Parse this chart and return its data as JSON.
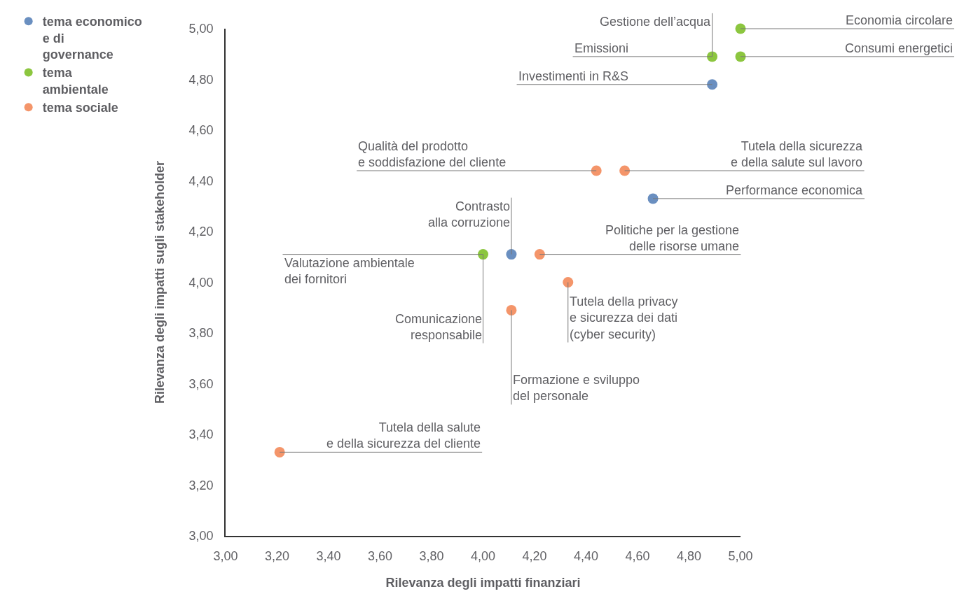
{
  "chart_data": {
    "type": "scatter",
    "xlabel": "Rilevanza degli impatti finanziari",
    "ylabel": "Rilevanza degli impatti sugli stakeholder",
    "xlim": [
      3,
      5
    ],
    "ylim": [
      3,
      5
    ],
    "xticks": [
      {
        "value": 3,
        "label": "3,00"
      },
      {
        "value": 3.2,
        "label": "3,20"
      },
      {
        "value": 3.4,
        "label": "3,40"
      },
      {
        "value": 3.6,
        "label": "3,60"
      },
      {
        "value": 3.8,
        "label": "3,80"
      },
      {
        "value": 4,
        "label": "4,00"
      },
      {
        "value": 4.2,
        "label": "4,20"
      },
      {
        "value": 4.4,
        "label": "4,40"
      },
      {
        "value": 4.6,
        "label": "4,60"
      },
      {
        "value": 4.8,
        "label": "4,80"
      },
      {
        "value": 5,
        "label": "5,00"
      }
    ],
    "yticks": [
      {
        "value": 3,
        "label": "3,00"
      },
      {
        "value": 3.2,
        "label": "3,20"
      },
      {
        "value": 3.4,
        "label": "3,40"
      },
      {
        "value": 3.6,
        "label": "3,60"
      },
      {
        "value": 3.8,
        "label": "3,80"
      },
      {
        "value": 4,
        "label": "4,00"
      },
      {
        "value": 4.2,
        "label": "4,20"
      },
      {
        "value": 4.4,
        "label": "4,40"
      },
      {
        "value": 4.6,
        "label": "4,60"
      },
      {
        "value": 4.8,
        "label": "4,80"
      },
      {
        "value": 5,
        "label": "5,00"
      }
    ],
    "legend": "top left",
    "marker": "circle",
    "series": [
      {
        "name": "tema economico\ne di\ngovernance",
        "color": "#6a8fc0",
        "x": [
          4.89,
          4.66,
          4.11
        ],
        "values": [
          4.78,
          4.33,
          4.11
        ]
      },
      {
        "name": "tema\nambientale",
        "color": "#8cc63f",
        "x": [
          5.0,
          4.89,
          5.0,
          4.0
        ],
        "values": [
          5.0,
          4.89,
          4.89,
          4.11
        ]
      },
      {
        "name": "tema sociale",
        "color": "#f4956a",
        "x": [
          4.44,
          4.55,
          4.22,
          4.33,
          4.11,
          3.21
        ],
        "values": [
          4.44,
          4.44,
          4.11,
          4.0,
          3.89,
          3.33
        ]
      }
    ],
    "annotations": [
      {
        "text": "Economia circolare",
        "x": 5.0,
        "y": 5.0
      },
      {
        "text": "Gestione dell’acqua",
        "x": 4.89,
        "y": 4.89
      },
      {
        "text": "Emissioni",
        "x": 4.89,
        "y": 4.89
      },
      {
        "text": "Consumi energetici",
        "x": 5.0,
        "y": 4.89
      },
      {
        "text": "Investimenti in R&S",
        "x": 4.89,
        "y": 4.78
      },
      {
        "text": "Qualità del prodotto\ne soddisfazione del cliente",
        "x": 4.44,
        "y": 4.44
      },
      {
        "text": "Tutela della sicurezza\ne della salute sul lavoro",
        "x": 4.55,
        "y": 4.44
      },
      {
        "text": "Performance economica",
        "x": 4.66,
        "y": 4.33
      },
      {
        "text": "Contrasto\nalla corruzione",
        "x": 4.11,
        "y": 4.11
      },
      {
        "text": "Valutazione ambientale\ndei fornitori",
        "x": 4.0,
        "y": 4.11
      },
      {
        "text": "Comunicazione\nresponsabile",
        "x": 4.0,
        "y": 4.11
      },
      {
        "text": "Politiche per la gestione\ndelle risorse umane",
        "x": 4.22,
        "y": 4.11
      },
      {
        "text": "Tutela della privacy\ne sicurezza dei dati\n(cyber security)",
        "x": 4.33,
        "y": 4.0
      },
      {
        "text": "Formazione e sviluppo\ndel personale",
        "x": 4.11,
        "y": 3.89
      },
      {
        "text": "Tutela della salute\ne della sicurezza del cliente",
        "x": 3.21,
        "y": 3.33
      }
    ]
  }
}
